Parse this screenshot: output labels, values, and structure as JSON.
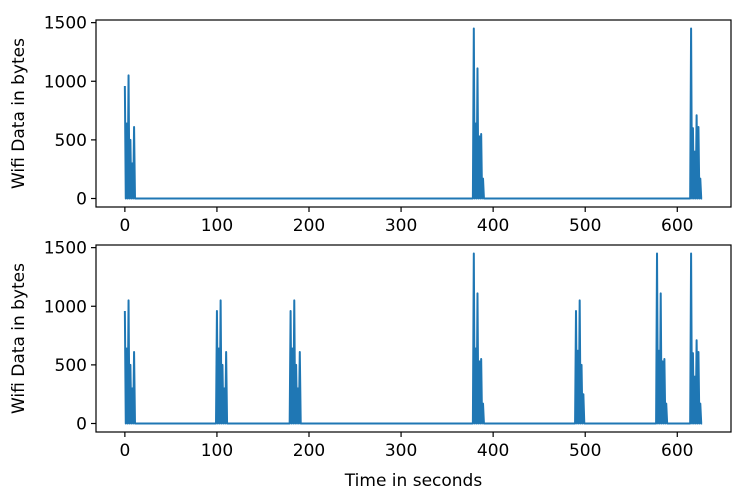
{
  "chart_data": [
    {
      "type": "line",
      "ylabel": "Wifi Data in bytes",
      "x": [
        0,
        1,
        2,
        3,
        4,
        5,
        6,
        7,
        8,
        9,
        10,
        11,
        12,
        378,
        379,
        380,
        381,
        382,
        383,
        384,
        385,
        386,
        387,
        388,
        389,
        390,
        614,
        615,
        616,
        617,
        618,
        619,
        620,
        621,
        622,
        623,
        624,
        625,
        626,
        627
      ],
      "series": [
        {
          "color": "#1f77b4",
          "values": [
            960,
            0,
            640,
            0,
            1050,
            0,
            500,
            0,
            300,
            0,
            610,
            0,
            0,
            0,
            1450,
            0,
            640,
            0,
            1110,
            0,
            530,
            0,
            550,
            0,
            170,
            0,
            0,
            1450,
            0,
            600,
            0,
            400,
            0,
            710,
            0,
            610,
            0,
            170,
            0,
            0
          ]
        }
      ],
      "xlim": [
        -31.35,
        658.35
      ],
      "xticks": [
        0,
        100,
        200,
        300,
        400,
        500,
        600
      ],
      "ylim": [
        -72.5,
        1522.5
      ],
      "yticks": [
        0,
        500,
        1000,
        1500
      ]
    },
    {
      "type": "line",
      "ylabel": "Wifi Data in bytes",
      "xlabel": "Time in seconds",
      "x": [
        0,
        1,
        2,
        3,
        4,
        5,
        6,
        7,
        8,
        9,
        10,
        11,
        12,
        99,
        100,
        101,
        102,
        103,
        104,
        105,
        106,
        107,
        108,
        109,
        110,
        111,
        112,
        179,
        180,
        181,
        182,
        183,
        184,
        185,
        186,
        187,
        188,
        189,
        190,
        191,
        192,
        378,
        379,
        380,
        381,
        382,
        383,
        384,
        385,
        386,
        387,
        388,
        389,
        390,
        489,
        490,
        491,
        492,
        493,
        494,
        495,
        496,
        497,
        498,
        499,
        500,
        577,
        578,
        579,
        580,
        581,
        582,
        583,
        584,
        585,
        586,
        587,
        588,
        589,
        614,
        615,
        616,
        617,
        618,
        619,
        620,
        621,
        622,
        623,
        624,
        625,
        626,
        627
      ],
      "series": [
        {
          "color": "#1f77b4",
          "values": [
            960,
            0,
            640,
            0,
            1050,
            0,
            500,
            0,
            300,
            0,
            610,
            0,
            0,
            0,
            960,
            0,
            640,
            0,
            1050,
            0,
            500,
            0,
            300,
            0,
            610,
            0,
            0,
            0,
            960,
            0,
            640,
            0,
            1050,
            0,
            500,
            0,
            300,
            0,
            610,
            0,
            0,
            0,
            1450,
            0,
            640,
            0,
            1110,
            0,
            530,
            0,
            550,
            0,
            170,
            0,
            0,
            960,
            0,
            620,
            0,
            1050,
            0,
            500,
            0,
            250,
            0,
            0,
            0,
            1450,
            0,
            620,
            0,
            1110,
            0,
            530,
            0,
            550,
            0,
            170,
            0,
            0,
            1450,
            0,
            600,
            0,
            400,
            0,
            710,
            0,
            610,
            0,
            170,
            0,
            0
          ]
        }
      ],
      "xlim": [
        -31.35,
        658.35
      ],
      "xticks": [
        0,
        100,
        200,
        300,
        400,
        500,
        600
      ],
      "ylim": [
        -72.5,
        1522.5
      ],
      "yticks": [
        0,
        500,
        1000,
        1500
      ]
    }
  ]
}
